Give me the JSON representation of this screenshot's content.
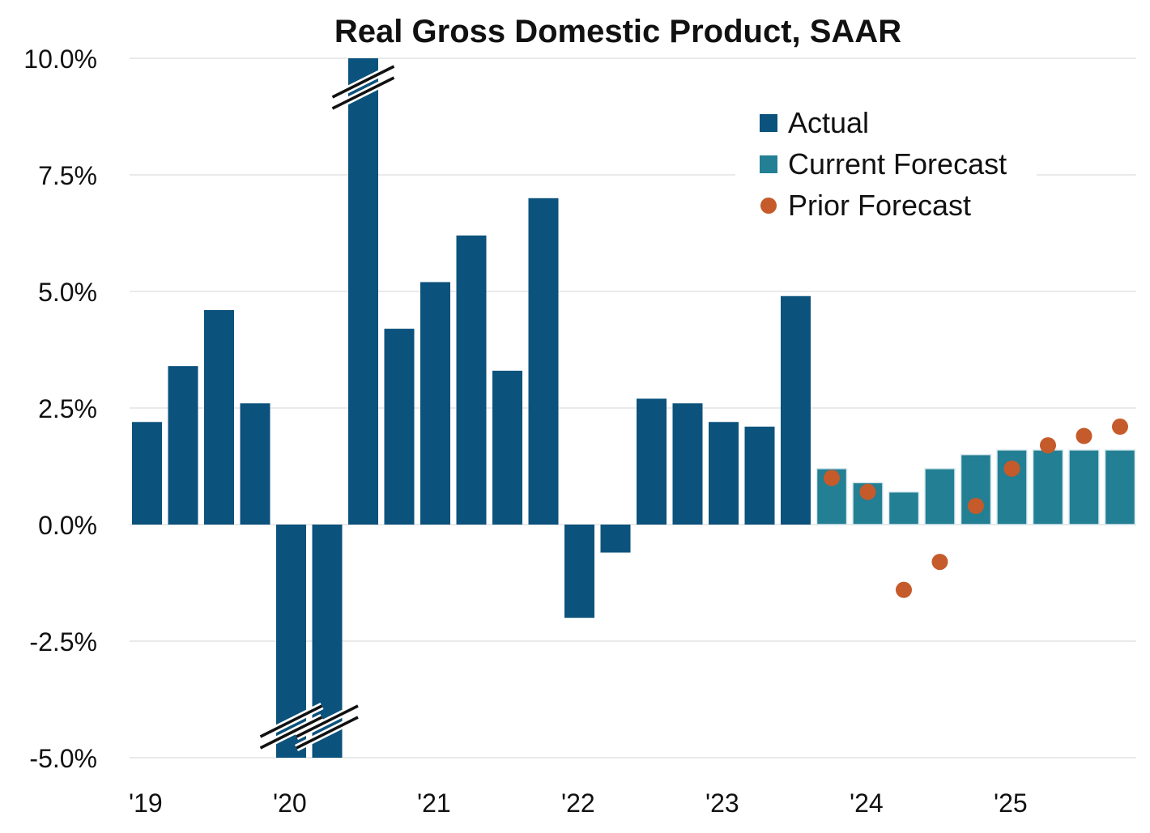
{
  "chart_data": {
    "type": "bar",
    "title": "Real Gross Domestic Product, SAAR",
    "xlabel": "",
    "ylabel": "",
    "ylim": [
      -5.0,
      10.0
    ],
    "y_ticks": [
      "10.0%",
      "7.5%",
      "5.0%",
      "2.5%",
      "0.0%",
      "-2.5%",
      "-5.0%"
    ],
    "x_tick_labels": [
      "'19",
      "'20",
      "'21",
      "'22",
      "'23",
      "'24",
      "'25"
    ],
    "quarters": [
      "2019Q1",
      "2019Q2",
      "2019Q3",
      "2019Q4",
      "2020Q1",
      "2020Q2",
      "2020Q3",
      "2020Q4",
      "2021Q1",
      "2021Q2",
      "2021Q3",
      "2021Q4",
      "2022Q1",
      "2022Q2",
      "2022Q3",
      "2022Q4",
      "2023Q1",
      "2023Q2",
      "2023Q3",
      "2023Q4",
      "2024Q1",
      "2024Q2",
      "2024Q3",
      "2024Q4",
      "2025Q1",
      "2025Q2",
      "2025Q3",
      "2025Q4"
    ],
    "axis_breaks": [
      "2020Q1",
      "2020Q2",
      "2020Q3"
    ],
    "legend": {
      "position": "top-right"
    },
    "grid": true,
    "series": [
      {
        "name": "Actual",
        "kind": "bar",
        "color": "#0b527c",
        "values": [
          2.2,
          3.4,
          4.6,
          2.6,
          -5.0,
          -5.0,
          10.0,
          4.2,
          5.2,
          6.2,
          3.3,
          7.0,
          -2.0,
          -0.6,
          2.7,
          2.6,
          2.2,
          2.1,
          4.9,
          null,
          null,
          null,
          null,
          null,
          null,
          null,
          null,
          null
        ]
      },
      {
        "name": "Current Forecast",
        "kind": "bar",
        "color": "#237f93",
        "values": [
          null,
          null,
          null,
          null,
          null,
          null,
          null,
          null,
          null,
          null,
          null,
          null,
          null,
          null,
          null,
          null,
          null,
          null,
          null,
          1.2,
          0.9,
          0.7,
          1.2,
          1.5,
          1.6,
          1.6,
          1.6,
          1.6
        ]
      },
      {
        "name": "Prior Forecast",
        "kind": "dot",
        "color": "#c55a2a",
        "values": [
          null,
          null,
          null,
          null,
          null,
          null,
          null,
          null,
          null,
          null,
          null,
          null,
          null,
          null,
          null,
          null,
          null,
          null,
          null,
          1.0,
          0.7,
          -1.4,
          -0.8,
          0.4,
          1.2,
          1.7,
          1.9,
          2.1
        ]
      }
    ]
  }
}
